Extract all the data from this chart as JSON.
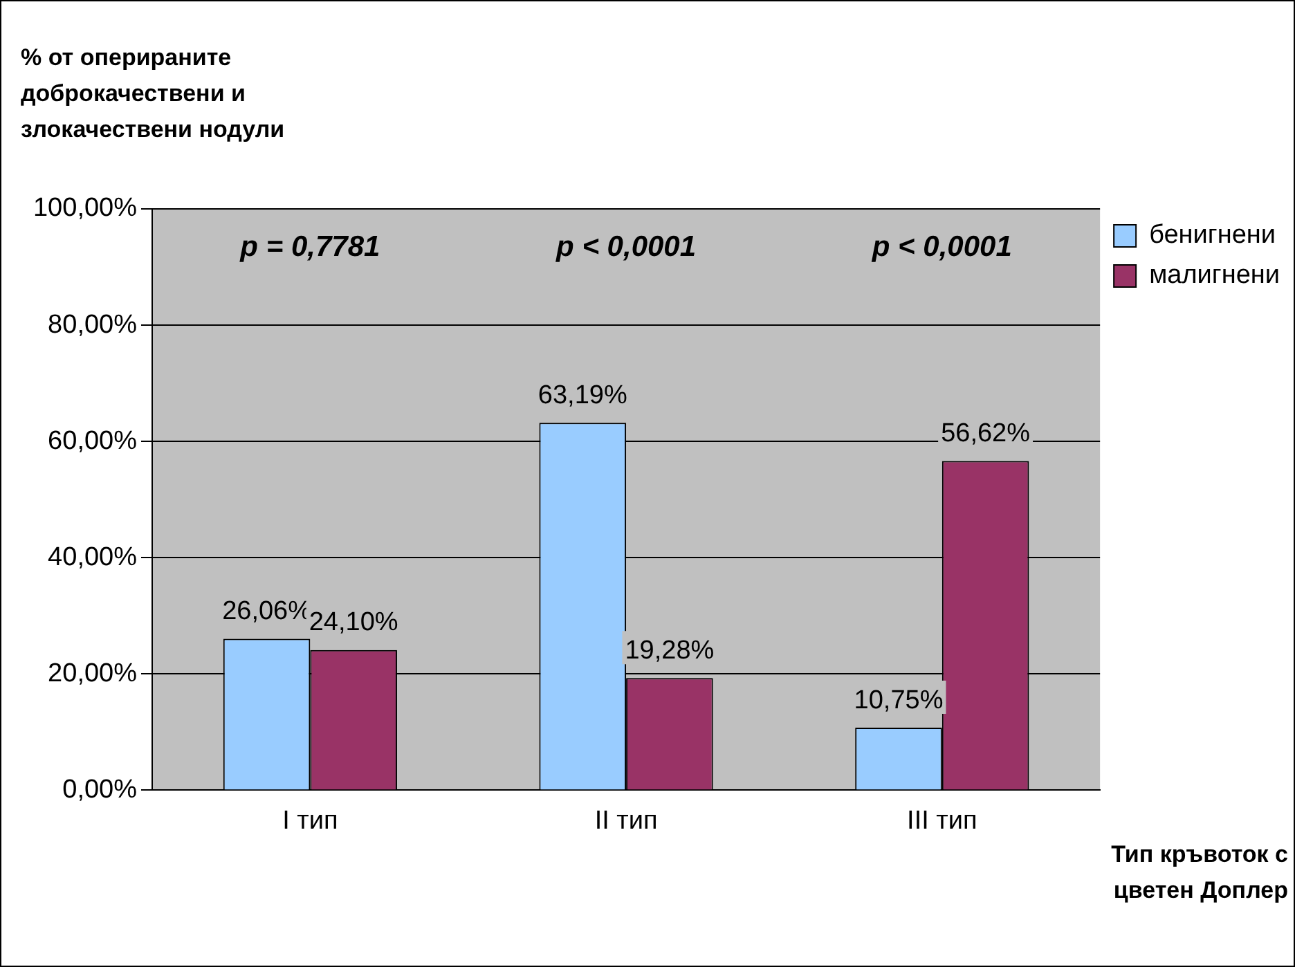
{
  "chart_data": {
    "type": "bar",
    "ylabel": "% от оперираните доброкачествени и злокачествени нодули",
    "xlabel": "Тип кръвоток с цветен Доплер",
    "categories": [
      "I тип",
      "II тип",
      "III тип"
    ],
    "series": [
      {
        "name": "бенигнени",
        "color": "#99ccff",
        "values": [
          26.06,
          63.19,
          10.75
        ],
        "value_labels": [
          "26,06%",
          "63,19%",
          "10,75%"
        ]
      },
      {
        "name": "малигнени",
        "color": "#993366",
        "values": [
          24.1,
          19.28,
          56.62
        ],
        "value_labels": [
          "24,10%",
          "19,28%",
          "56,62%"
        ]
      }
    ],
    "ylim": [
      0,
      100
    ],
    "yticks": [
      {
        "value": 0,
        "label": "0,00%"
      },
      {
        "value": 20,
        "label": "20,00%"
      },
      {
        "value": 40,
        "label": "40,00%"
      },
      {
        "value": 60,
        "label": "60,00%"
      },
      {
        "value": 80,
        "label": "80,00%"
      },
      {
        "value": 100,
        "label": "100,00%"
      }
    ],
    "grid": "y",
    "legend": "right",
    "annotations": [
      "p = 0,7781",
      "p < 0,0001",
      "p < 0,0001"
    ]
  }
}
